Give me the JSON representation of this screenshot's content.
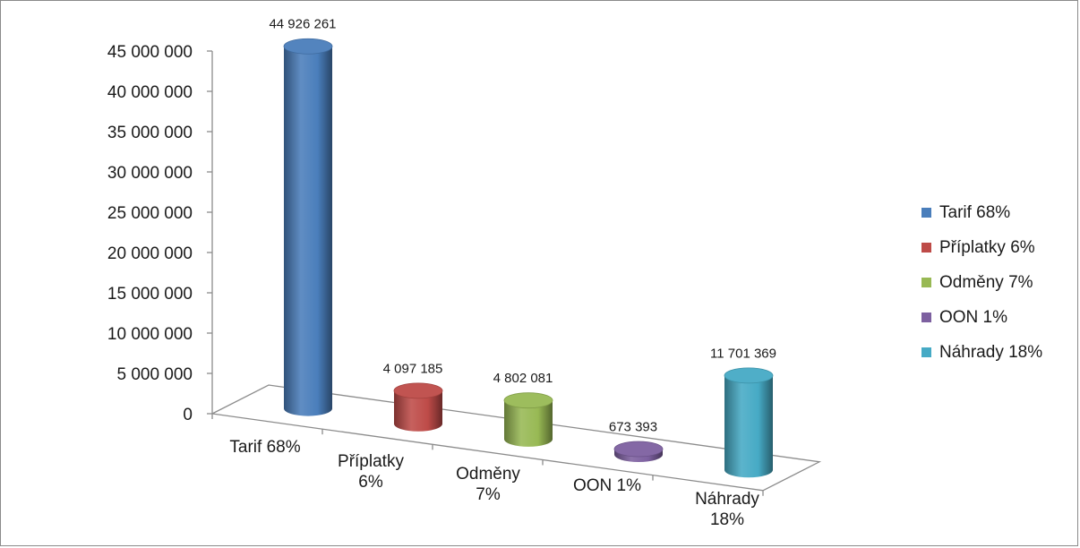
{
  "chart_data": {
    "type": "bar",
    "style": "3d-cylinder",
    "categories": [
      "Tarif 68%",
      "Příplatky 6%",
      "Odměny 7%",
      "OON 1%",
      "Náhrady 18%"
    ],
    "category_label_lines": [
      [
        "Tarif 68%"
      ],
      [
        "Příplatky",
        "6%"
      ],
      [
        "Odměny",
        "7%"
      ],
      [
        "OON 1%"
      ],
      [
        "Náhrady",
        "18%"
      ]
    ],
    "values": [
      44926261,
      4097185,
      4802081,
      673393,
      11701369
    ],
    "data_labels": [
      "44 926 261",
      "4 097 185",
      "4 802 081",
      "673 393",
      "11 701 369"
    ],
    "colors": [
      "#4a7ebb",
      "#be4b48",
      "#98b954",
      "#7d60a0",
      "#46aac5"
    ],
    "ylim": [
      0,
      45000000
    ],
    "yticks": [
      0,
      5000000,
      10000000,
      15000000,
      20000000,
      25000000,
      30000000,
      35000000,
      40000000,
      45000000
    ],
    "ytick_labels": [
      "0",
      "5 000 000",
      "10 000 000",
      "15 000 000",
      "20 000 000",
      "25 000 000",
      "30 000 000",
      "35 000 000",
      "40 000 000",
      "45 000 000"
    ],
    "grid": false,
    "legend": {
      "position": "right",
      "entries": [
        "Tarif 68%",
        "Příplatky 6%",
        "Odměny 7%",
        "OON 1%",
        "Náhrady 18%"
      ]
    }
  }
}
